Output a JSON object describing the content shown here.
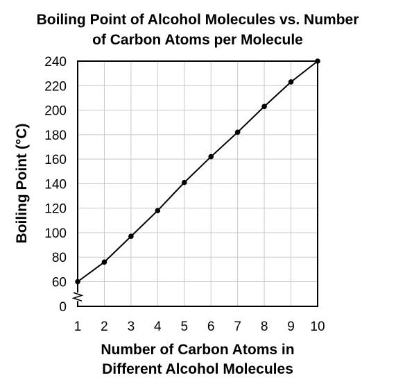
{
  "chart_data": {
    "type": "line",
    "title_lines": [
      "Boiling Point of Alcohol Molecules vs. Number",
      "of Carbon Atoms per Molecule"
    ],
    "xlabel_lines": [
      "Number of Carbon Atoms in",
      "Different Alcohol Molecules"
    ],
    "ylabel": "Boiling Point (°C)",
    "x": [
      1,
      2,
      3,
      4,
      5,
      6,
      7,
      8,
      9,
      10
    ],
    "series": [
      {
        "values": [
          60,
          76,
          97,
          118,
          141,
          162,
          182,
          203,
          223,
          240
        ]
      }
    ],
    "xlim": [
      1,
      10
    ],
    "ylim": [
      0,
      240
    ],
    "x_ticks": [
      "1",
      "2",
      "3",
      "4",
      "5",
      "6",
      "7",
      "8",
      "9",
      "10"
    ],
    "y_ticks": [
      "0",
      "60",
      "80",
      "100",
      "120",
      "140",
      "160",
      "180",
      "200",
      "220",
      "240"
    ],
    "y_axis_break": true,
    "grid": true,
    "colors": {
      "line": "#000000",
      "grid": "#c8c8c8",
      "frame": "#000000"
    }
  }
}
